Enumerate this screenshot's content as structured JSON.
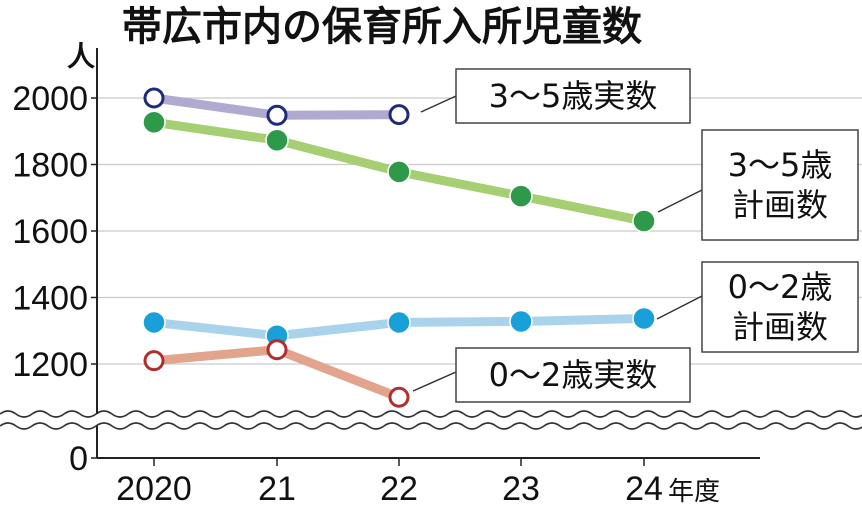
{
  "chart_data": {
    "type": "line",
    "title": "帯広市内の保育所入所児童数",
    "ylabel": "人",
    "xunit": "年度",
    "categories": [
      "2020",
      "21",
      "22",
      "23",
      "24"
    ],
    "yticks": [
      "2000",
      "1800",
      "1600",
      "1400",
      "1200",
      "0"
    ],
    "axis_break": true,
    "series": [
      {
        "name": "3〜5歳実数",
        "label_lines": [
          "3〜5歳実数"
        ],
        "values": [
          2000,
          1948,
          1950,
          null,
          null
        ],
        "color": "#b0aad0",
        "marker": "open",
        "marker_color": "#1f2a7a"
      },
      {
        "name": "3〜5歳計画数",
        "label_lines": [
          "3〜5歳",
          "計画数"
        ],
        "values": [
          1927,
          1873,
          1778,
          1705,
          1630
        ],
        "color": "#a5cf72",
        "marker": "filled",
        "marker_color": "#2e9a49"
      },
      {
        "name": "0〜2歳計画数",
        "label_lines": [
          "0〜2歳",
          "計画数"
        ],
        "values": [
          1325,
          1285,
          1325,
          1328,
          1337
        ],
        "color": "#a9d3ea",
        "marker": "filled",
        "marker_color": "#1aa0d8"
      },
      {
        "name": "0〜2歳実数",
        "label_lines": [
          "0〜2歳実数"
        ],
        "values": [
          1210,
          1243,
          1100,
          null,
          null
        ],
        "color": "#e2a48c",
        "marker": "open",
        "marker_color": "#b22e2e"
      }
    ]
  }
}
